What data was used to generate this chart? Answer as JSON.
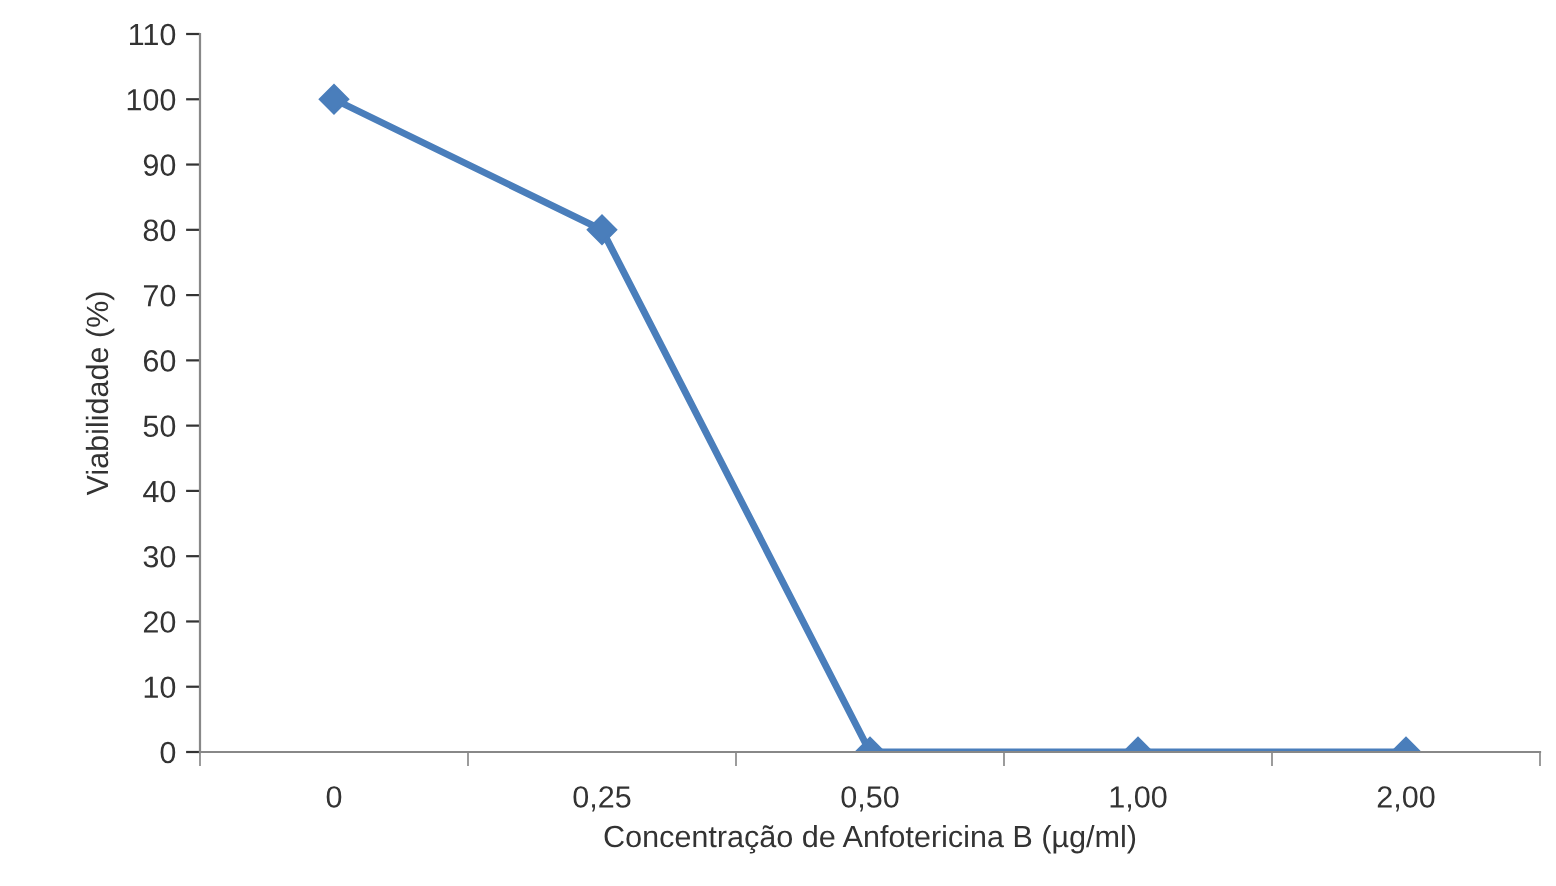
{
  "chart_data": {
    "type": "line",
    "xlabel": "Concentração de Anfotericina B (µg/ml)",
    "ylabel": "Viabilidade (%)",
    "categories": [
      "0",
      "0,25",
      "0,50",
      "1,00",
      "2,00"
    ],
    "series": [
      {
        "color": "#4a7ebb",
        "values": [
          100,
          80,
          0,
          0,
          0
        ]
      }
    ],
    "ylim": [
      0,
      110
    ],
    "yticks": [
      0,
      10,
      20,
      30,
      40,
      50,
      60,
      70,
      80,
      90,
      100,
      110
    ],
    "grid": false,
    "legend": false,
    "marker": "diamond",
    "line_style": "solid"
  }
}
